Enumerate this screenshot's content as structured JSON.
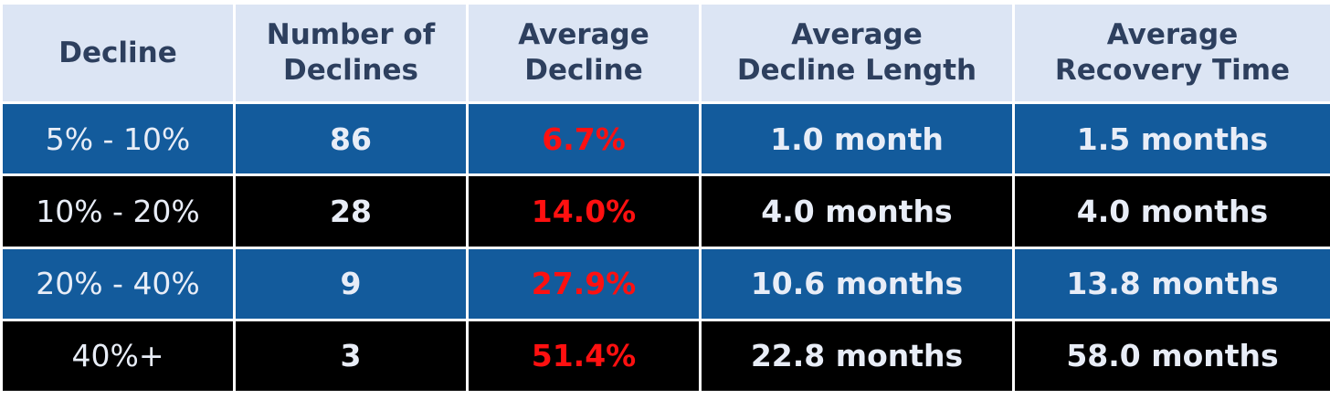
{
  "table": {
    "header": [
      "Decline",
      "Number of\nDeclines",
      "Average\nDecline",
      "Average\nDecline Length",
      "Average\nRecovery Time"
    ],
    "rows": [
      [
        "5% - 10%",
        "86",
        "6.7%",
        "1.0 month",
        "1.5 months"
      ],
      [
        "10% - 20%",
        "28",
        "14.0%",
        "4.0 months",
        "4.0 months"
      ],
      [
        "20% - 40%",
        "9",
        "27.9%",
        "10.6 months",
        "13.8 months"
      ],
      [
        "40%+",
        "3",
        "51.4%",
        "22.8 months",
        "58.0 months"
      ]
    ]
  }
}
